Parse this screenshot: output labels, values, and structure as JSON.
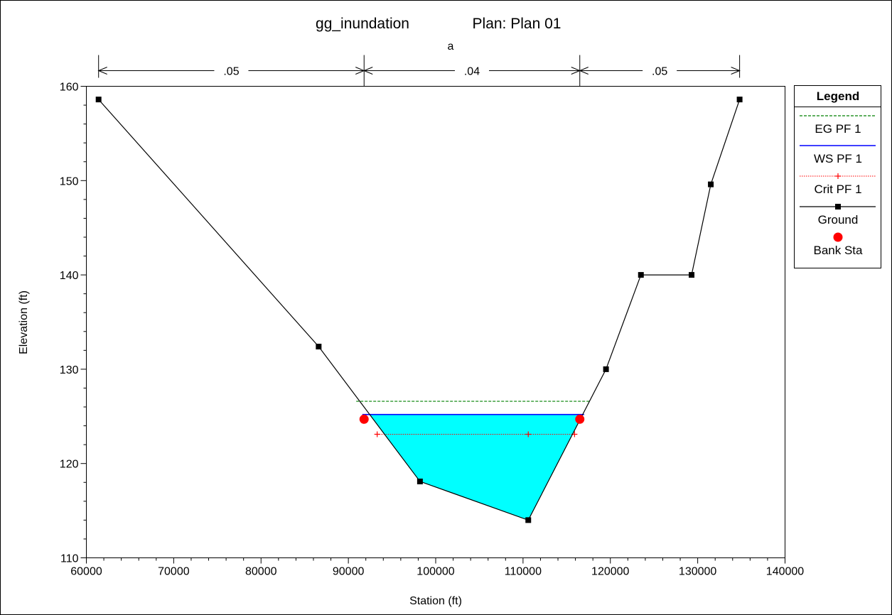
{
  "chart_data": {
    "type": "line",
    "title_left": "gg_inundation",
    "title_right": "Plan: Plan 01",
    "subtitle": "a",
    "xlabel": "Station (ft)",
    "ylabel": "Elevation (ft)",
    "xlim": [
      60000,
      140000
    ],
    "ylim": [
      110,
      160
    ],
    "x_ticks": [
      60000,
      70000,
      80000,
      90000,
      100000,
      110000,
      120000,
      130000,
      140000
    ],
    "x_tick_labels": [
      "60000",
      "70000",
      "80000",
      "90000",
      "100000",
      "110000",
      "120000",
      "130000",
      "140000"
    ],
    "y_ticks": [
      110,
      120,
      130,
      140,
      150,
      160
    ],
    "y_tick_labels": [
      "110",
      "120",
      "130",
      "140",
      "150",
      "160"
    ],
    "ground": {
      "x": [
        61400,
        86600,
        98200,
        110600,
        119500,
        123500,
        129300,
        131500,
        134800
      ],
      "y": [
        158.6,
        132.4,
        118.1,
        114.0,
        130.0,
        140.0,
        140.0,
        149.6,
        158.6
      ]
    },
    "bank_stations": {
      "x": [
        91800,
        116500
      ],
      "y": [
        124.7,
        124.7
      ]
    },
    "water_surface": {
      "elevation": 125.2,
      "x_start": 91600,
      "x_end": 117000
    },
    "energy_grade": {
      "elevation": 126.6,
      "x_start": 90900,
      "x_end": 117700
    },
    "critical": {
      "elevation": 123.1,
      "x_start": 93300,
      "x_end": 115900,
      "markers_x": [
        93300,
        110600,
        115900
      ]
    },
    "mannings_n": [
      {
        "label": ".05",
        "x_start": 61400,
        "x_end": 91800
      },
      {
        "label": ".04",
        "x_start": 91800,
        "x_end": 116500
      },
      {
        "label": ".05",
        "x_start": 116500,
        "x_end": 134800
      }
    ],
    "legend": {
      "title": "Legend",
      "position": "right",
      "items": [
        {
          "label": "EG PF 1",
          "color": "#008000",
          "style": "dashed"
        },
        {
          "label": "WS PF 1",
          "color": "#0000ff",
          "style": "solid"
        },
        {
          "label": "Crit PF 1",
          "color": "#ff0000",
          "style": "dotted-plus"
        },
        {
          "label": "Ground",
          "color": "#000000",
          "style": "line-square"
        },
        {
          "label": "Bank Sta",
          "color": "#ff0000",
          "style": "circle"
        }
      ]
    },
    "colors": {
      "water_fill": "#00ffff",
      "ground": "#000000",
      "ws": "#0000ff",
      "eg": "#008000",
      "crit": "#ff0000",
      "bank": "#ff0000"
    }
  }
}
